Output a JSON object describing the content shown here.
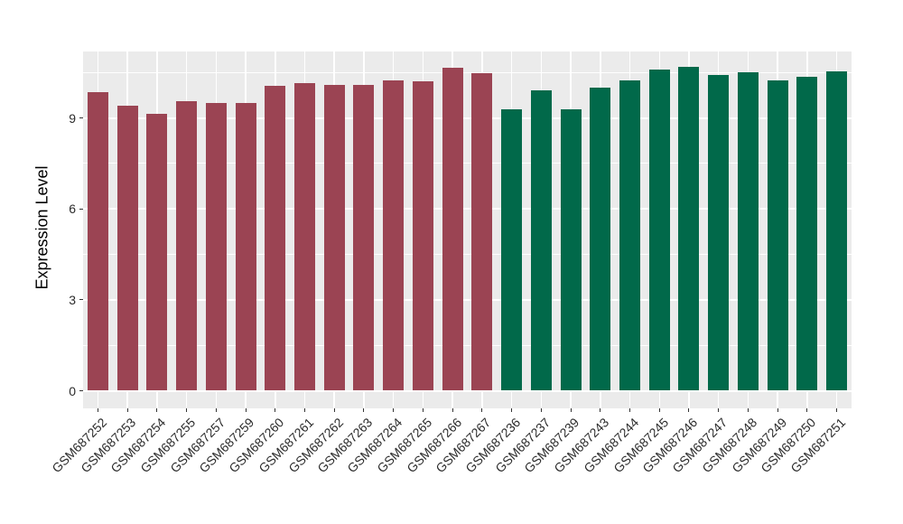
{
  "chart_data": {
    "type": "bar",
    "title": "",
    "xlabel": "",
    "ylabel": "Expression Level",
    "categories": [
      "GSM687252",
      "GSM687253",
      "GSM687254",
      "GSM687255",
      "GSM687257",
      "GSM687259",
      "GSM687260",
      "GSM687261",
      "GSM687262",
      "GSM687263",
      "GSM687264",
      "GSM687265",
      "GSM687266",
      "GSM687267",
      "GSM687236",
      "GSM687237",
      "GSM687239",
      "GSM687243",
      "GSM687244",
      "GSM687245",
      "GSM687246",
      "GSM687247",
      "GSM687248",
      "GSM687249",
      "GSM687250",
      "GSM687251"
    ],
    "values": [
      9.85,
      9.4,
      9.15,
      9.55,
      9.5,
      9.5,
      10.05,
      10.15,
      10.1,
      10.1,
      10.25,
      10.2,
      10.65,
      10.47,
      9.3,
      9.9,
      9.3,
      10.0,
      10.25,
      10.6,
      10.7,
      10.42,
      10.5,
      10.25,
      10.35,
      10.55
    ],
    "bar_groups": [
      0,
      0,
      0,
      0,
      0,
      0,
      0,
      0,
      0,
      0,
      0,
      0,
      0,
      0,
      1,
      1,
      1,
      1,
      1,
      1,
      1,
      1,
      1,
      1,
      1,
      1
    ],
    "group_colors": [
      "#9B4453",
      "#01694A"
    ],
    "yticks": [
      0,
      3,
      6,
      9
    ],
    "minor_yticks": [
      1.5,
      4.5,
      7.5,
      10.5
    ],
    "ylim": [
      -0.6,
      11.2
    ],
    "legend": "none",
    "grid": "major-and-minor-white",
    "panel_background": "#EBEBEB",
    "gridline_color": "#FFFFFF",
    "axis_text_color": "#2b2b2b",
    "tick_mark_color": "#333333"
  }
}
